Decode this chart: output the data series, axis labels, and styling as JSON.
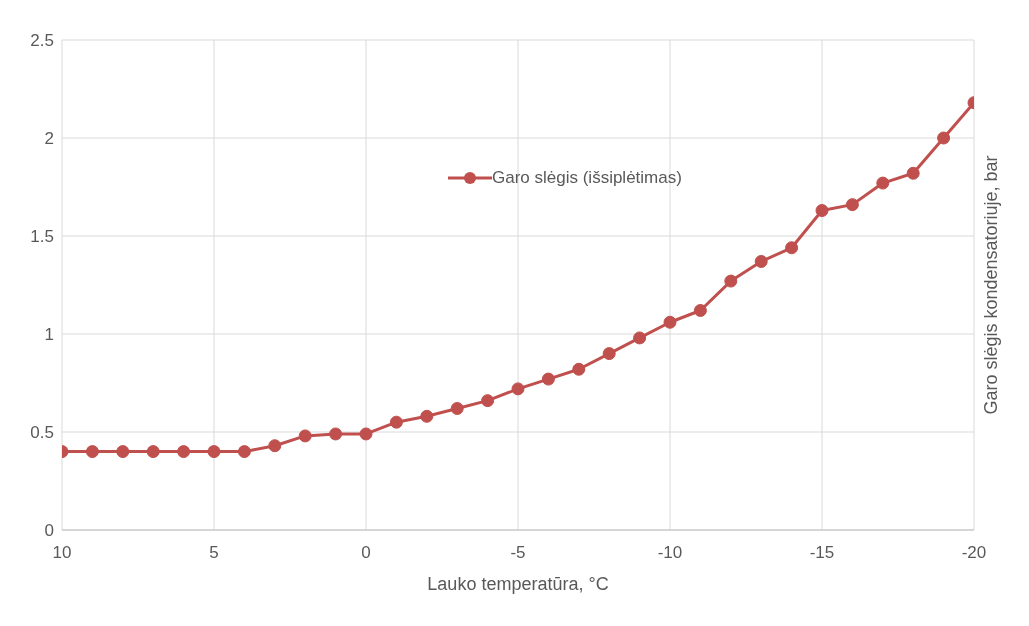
{
  "chart_data": {
    "type": "line",
    "xlabel": "Lauko temperatūra, °C",
    "ylabel": "Garo slėgis kondensatoriuje, bar",
    "x": [
      10,
      9,
      8,
      7,
      6,
      5,
      4,
      3,
      2,
      1,
      0,
      -1,
      -2,
      -3,
      -4,
      -5,
      -6,
      -7,
      -8,
      -9,
      -10,
      -11,
      -12,
      -13,
      -14,
      -15,
      -16,
      -17,
      -18,
      -19,
      -20
    ],
    "series": [
      {
        "name": "Garo slėgis (išsiplėtimas)",
        "color": "#c0504d",
        "values": [
          0.4,
          0.4,
          0.4,
          0.4,
          0.4,
          0.4,
          0.4,
          0.43,
          0.48,
          0.49,
          0.49,
          0.55,
          0.58,
          0.62,
          0.66,
          0.72,
          0.77,
          0.82,
          0.9,
          0.98,
          1.06,
          1.12,
          1.27,
          1.37,
          1.44,
          1.63,
          1.66,
          1.77,
          1.82,
          2.0,
          2.18
        ]
      }
    ],
    "xlim": [
      10,
      -20
    ],
    "xticks": [
      10,
      5,
      0,
      -5,
      -10,
      -15,
      -20
    ],
    "ylim": [
      0,
      2.5
    ],
    "yticks": [
      0,
      0.5,
      1,
      1.5,
      2,
      2.5
    ],
    "grid": true,
    "legend": "top",
    "marker": "circle",
    "line_style": "solid"
  }
}
